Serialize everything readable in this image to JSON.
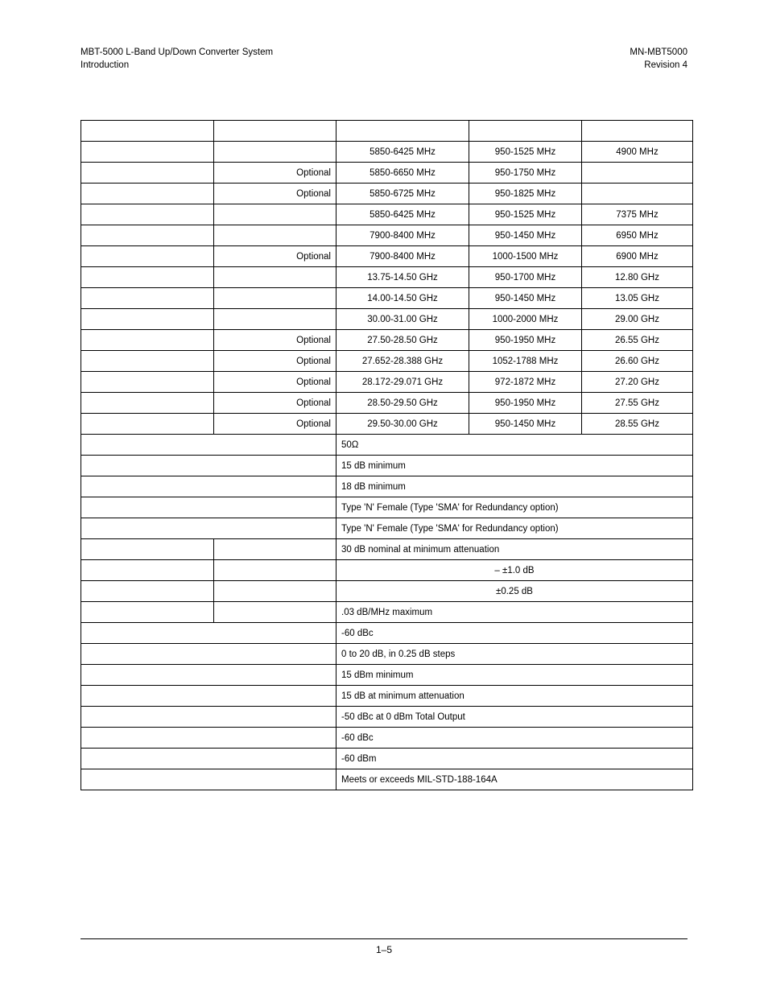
{
  "header": {
    "left_line1": "MBT-5000 L-Band Up/Down Converter System",
    "left_line2": "Introduction",
    "right_line1": "MN-MBT5000",
    "right_line2": "Revision 4"
  },
  "freq_rows": [
    {
      "opt": "",
      "rf": "5850-6425 MHz",
      "if": "950-1525 MHz",
      "lo": "4900 MHz"
    },
    {
      "opt": "Optional",
      "rf": "5850-6650 MHz",
      "if": "950-1750 MHz",
      "lo": ""
    },
    {
      "opt": "Optional",
      "rf": "5850-6725 MHz",
      "if": "950-1825 MHz",
      "lo": ""
    },
    {
      "opt": "",
      "rf": "5850-6425 MHz",
      "if": "950-1525 MHz",
      "lo": "7375 MHz"
    },
    {
      "opt": "",
      "rf": "7900-8400 MHz",
      "if": "950-1450 MHz",
      "lo": "6950 MHz"
    },
    {
      "opt": "Optional",
      "rf": "7900-8400 MHz",
      "if": "1000-1500 MHz",
      "lo": "6900 MHz"
    },
    {
      "opt": "",
      "rf": "13.75-14.50 GHz",
      "if": "950-1700 MHz",
      "lo": "12.80 GHz"
    },
    {
      "opt": "",
      "rf": "14.00-14.50 GHz",
      "if": "950-1450 MHz",
      "lo": "13.05 GHz"
    },
    {
      "opt": "",
      "rf": "30.00-31.00 GHz",
      "if": "1000-2000 MHz",
      "lo": "29.00 GHz"
    },
    {
      "opt": "Optional",
      "rf": "27.50-28.50 GHz",
      "if": "950-1950 MHz",
      "lo": "26.55 GHz"
    },
    {
      "opt": "Optional",
      "rf": "27.652-28.388 GHz",
      "if": "1052-1788 MHz",
      "lo": "26.60 GHz"
    },
    {
      "opt": "Optional",
      "rf": "28.172-29.071 GHz",
      "if": "972-1872 MHz",
      "lo": "27.20 GHz"
    },
    {
      "opt": "Optional",
      "rf": "28.50-29.50 GHz",
      "if": "950-1950 MHz",
      "lo": "27.55 GHz"
    },
    {
      "opt": "Optional",
      "rf": "29.50-30.00 GHz",
      "if": "950-1450 MHz",
      "lo": "28.55 GHz"
    }
  ],
  "spec_rows": {
    "impedance": "50Ω",
    "rl_15": "15 dB minimum",
    "rl_18": "18 dB minimum",
    "conn1": "Type 'N' Female (Type 'SMA' for Redundancy option)",
    "conn2": "Type 'N' Female (Type 'SMA' for Redundancy option)",
    "gain_nom": "30 dB nominal at minimum attenuation",
    "gain_tol": "– ±1.0 dB",
    "gain_step": "±0.25 dB",
    "slope": ".03 dB/MHz maximum",
    "noise_60": "-60 dBc",
    "atten": "0 to 20 dB, in 0.25 dB steps",
    "p1db": "15 dBm minimum",
    "nf": "15 dB at minimum attenuation",
    "im3": "-50 dBc at 0 dBm Total Output",
    "spur_60dbc": "-60 dBc",
    "spur_60dbm": "-60 dBm",
    "milstd": "Meets or exceeds MIL-STD-188-164A"
  },
  "page_number": "1–5"
}
